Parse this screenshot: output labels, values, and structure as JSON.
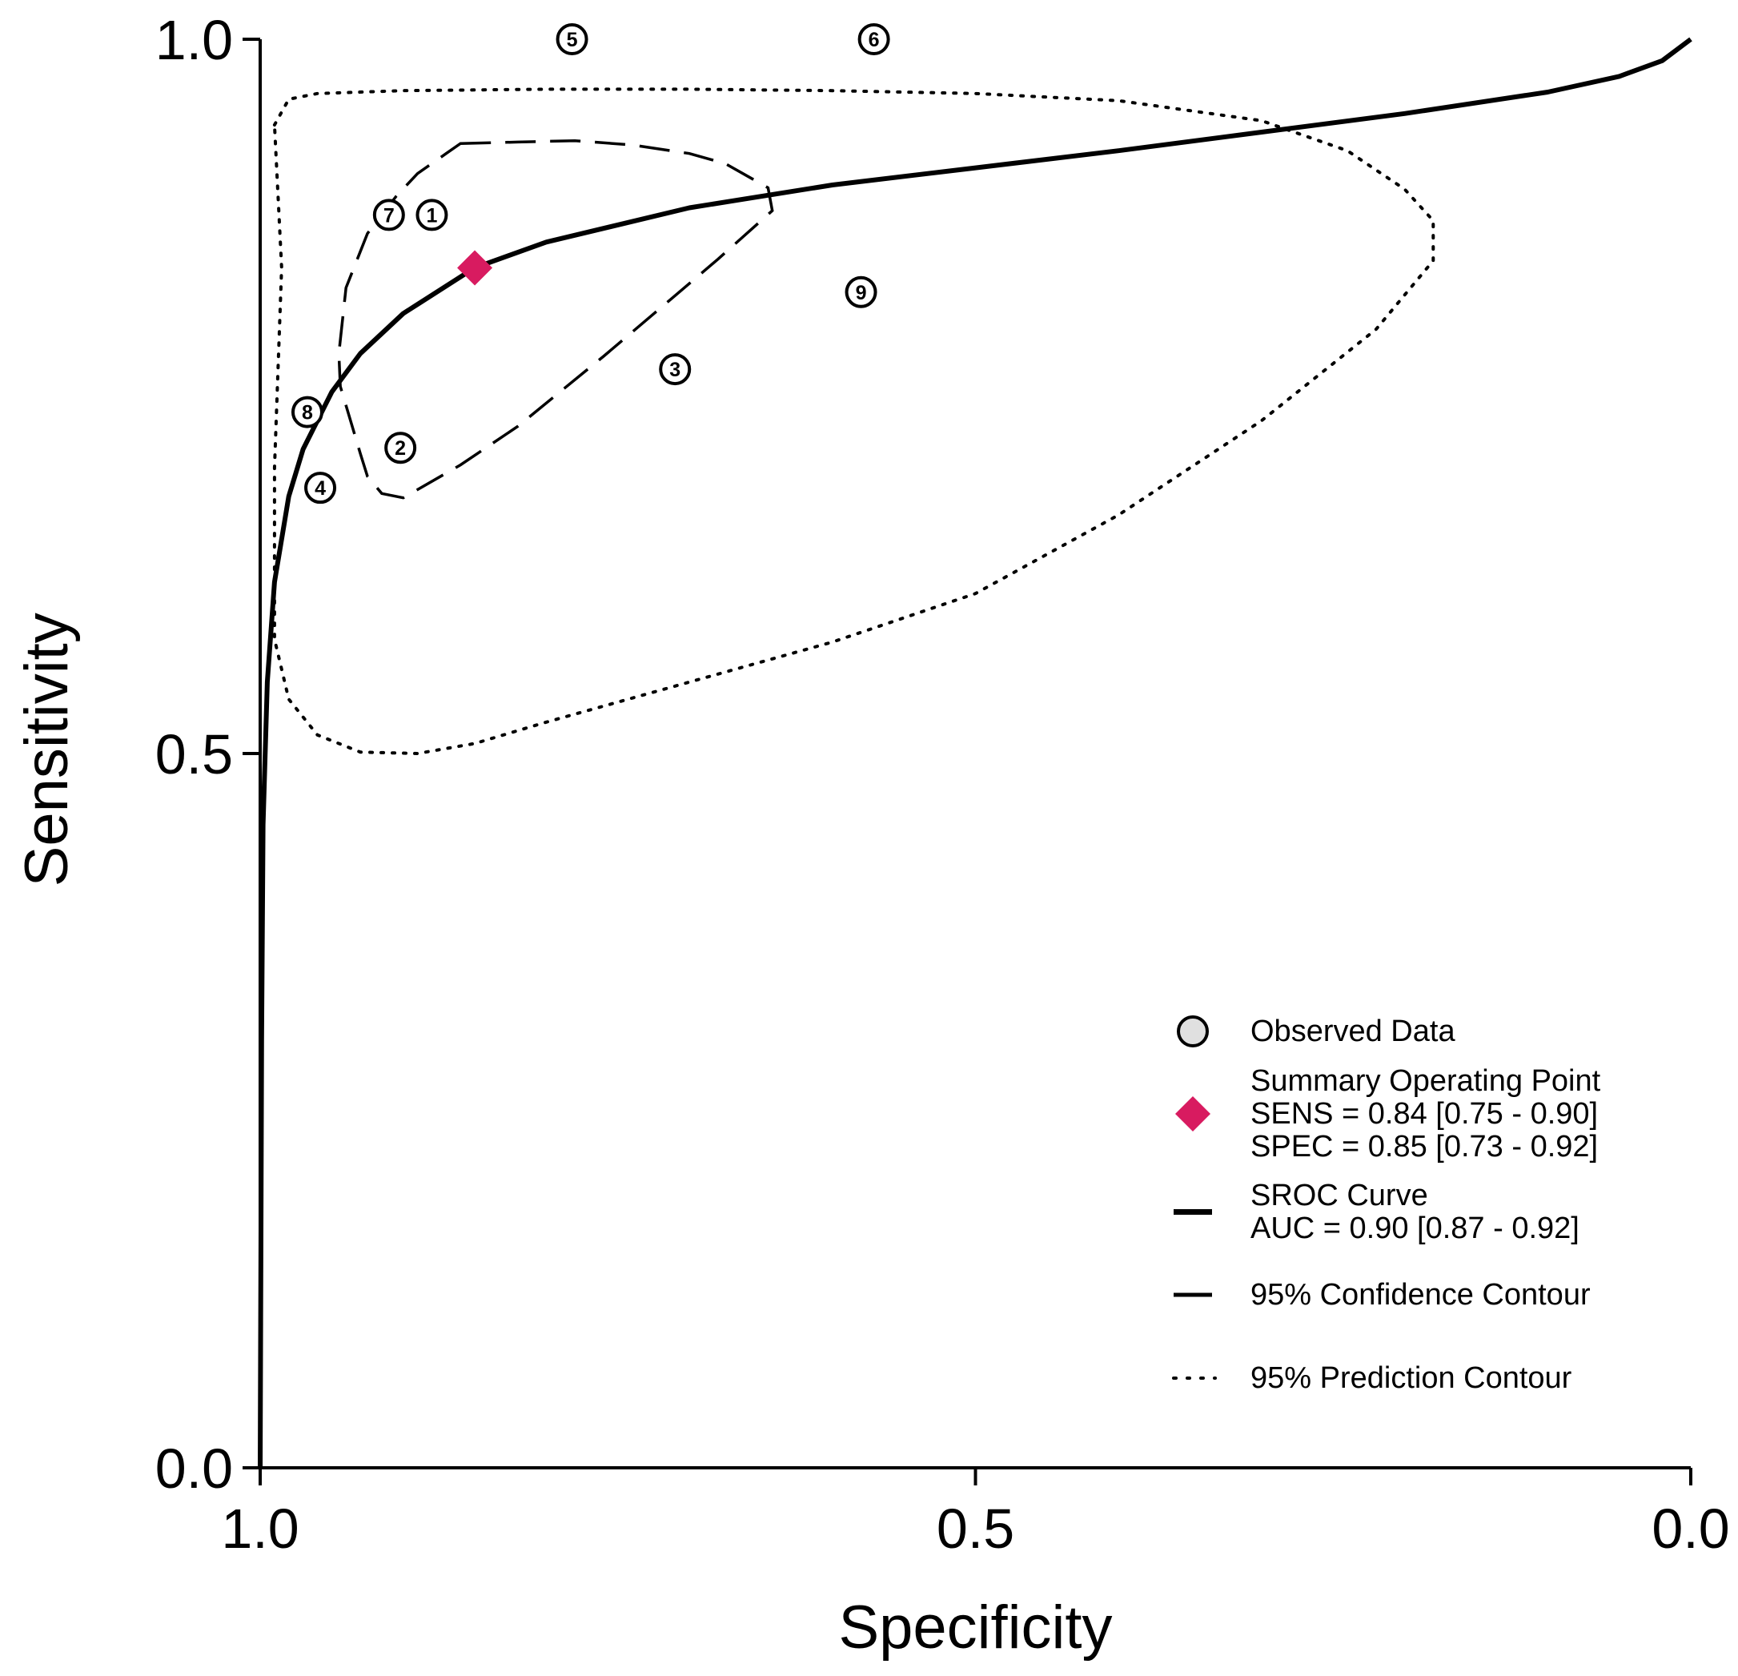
{
  "chart_data": {
    "type": "scatter",
    "title": "",
    "xlabel": "Specificity",
    "ylabel": "Sensitivity",
    "xlim": [
      1.0,
      0.0
    ],
    "ylim": [
      0.0,
      1.0
    ],
    "x_ticks": [
      "1.0",
      "0.5",
      "0.0"
    ],
    "y_ticks": [
      "0.0",
      "0.5",
      "1.0"
    ],
    "grid": false,
    "legend_position": "bottom-right",
    "observed": [
      {
        "id": "1",
        "label": "①",
        "spec": 0.88,
        "sens": 0.877
      },
      {
        "id": "2",
        "label": "②",
        "spec": 0.902,
        "sens": 0.714
      },
      {
        "id": "3",
        "label": "③",
        "spec": 0.71,
        "sens": 0.769
      },
      {
        "id": "4",
        "label": "④",
        "spec": 0.958,
        "sens": 0.686
      },
      {
        "id": "5",
        "label": "⑤",
        "spec": 0.782,
        "sens": 1.0
      },
      {
        "id": "6",
        "label": "⑥",
        "spec": 0.571,
        "sens": 1.0
      },
      {
        "id": "7",
        "label": "⑦",
        "spec": 0.91,
        "sens": 0.877
      },
      {
        "id": "8",
        "label": "⑧",
        "spec": 0.967,
        "sens": 0.739
      },
      {
        "id": "9",
        "label": "⑨",
        "spec": 0.58,
        "sens": 0.823
      }
    ],
    "summary_point": {
      "spec": 0.85,
      "sens": 0.84,
      "color": "#d81b60"
    },
    "sroc_curve": {
      "spec": [
        1.0,
        0.999,
        0.998,
        0.995,
        0.99,
        0.98,
        0.97,
        0.95,
        0.93,
        0.9,
        0.85,
        0.8,
        0.7,
        0.6,
        0.5,
        0.4,
        0.3,
        0.2,
        0.1,
        0.05,
        0.02,
        0.0
      ],
      "sens": [
        0.0,
        0.3,
        0.45,
        0.55,
        0.62,
        0.68,
        0.713,
        0.753,
        0.78,
        0.808,
        0.84,
        0.858,
        0.882,
        0.898,
        0.91,
        0.922,
        0.935,
        0.948,
        0.963,
        0.974,
        0.985,
        1.0
      ]
    },
    "confidence_contour": {
      "spec": [
        0.86,
        0.82,
        0.78,
        0.74,
        0.7,
        0.675,
        0.645,
        0.642,
        0.68,
        0.72,
        0.76,
        0.82,
        0.86,
        0.9,
        0.915,
        0.925,
        0.93,
        0.944,
        0.945,
        0.94,
        0.925,
        0.905,
        0.89,
        0.87,
        0.86
      ],
      "sens": [
        0.927,
        0.928,
        0.929,
        0.926,
        0.92,
        0.913,
        0.896,
        0.88,
        0.846,
        0.812,
        0.778,
        0.729,
        0.702,
        0.679,
        0.682,
        0.694,
        0.71,
        0.757,
        0.78,
        0.826,
        0.864,
        0.89,
        0.906,
        0.92,
        0.927
      ]
    },
    "prediction_contour": {
      "spec": [
        0.99,
        0.98,
        0.96,
        0.9,
        0.8,
        0.7,
        0.6,
        0.5,
        0.4,
        0.3,
        0.24,
        0.2,
        0.18,
        0.18,
        0.22,
        0.3,
        0.4,
        0.5,
        0.6,
        0.7,
        0.8,
        0.85,
        0.89,
        0.93,
        0.96,
        0.98,
        0.99,
        0.99,
        0.985,
        0.99
      ],
      "sens": [
        0.94,
        0.958,
        0.962,
        0.964,
        0.965,
        0.965,
        0.964,
        0.962,
        0.957,
        0.943,
        0.922,
        0.895,
        0.873,
        0.845,
        0.797,
        0.733,
        0.667,
        0.612,
        0.578,
        0.55,
        0.522,
        0.507,
        0.5,
        0.501,
        0.513,
        0.538,
        0.58,
        0.7,
        0.84,
        0.94
      ]
    },
    "legend": [
      {
        "kind": "circle",
        "lines": [
          "Observed Data"
        ]
      },
      {
        "kind": "diamond",
        "lines": [
          "Summary Operating Point",
          "SENS = 0.84 [0.75 - 0.90]",
          "SPEC = 0.85 [0.73 - 0.92]"
        ]
      },
      {
        "kind": "solid",
        "lines": [
          "SROC Curve",
          "AUC = 0.90 [0.87 - 0.92]"
        ]
      },
      {
        "kind": "dashed",
        "lines": [
          "95% Confidence Contour"
        ]
      },
      {
        "kind": "dotted",
        "lines": [
          "95% Prediction Contour"
        ]
      }
    ]
  }
}
